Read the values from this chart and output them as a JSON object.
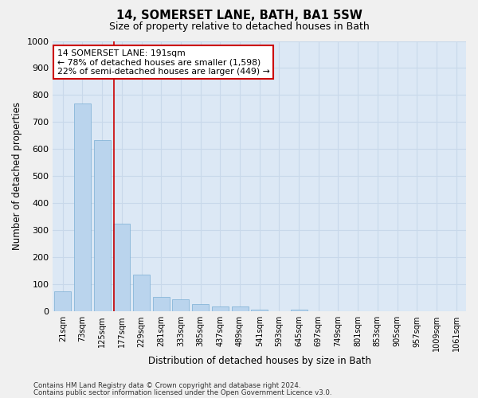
{
  "title": "14, SOMERSET LANE, BATH, BA1 5SW",
  "subtitle": "Size of property relative to detached houses in Bath",
  "xlabel": "Distribution of detached houses by size in Bath",
  "ylabel": "Number of detached properties",
  "categories": [
    "21sqm",
    "73sqm",
    "125sqm",
    "177sqm",
    "229sqm",
    "281sqm",
    "333sqm",
    "385sqm",
    "437sqm",
    "489sqm",
    "541sqm",
    "593sqm",
    "645sqm",
    "697sqm",
    "749sqm",
    "801sqm",
    "853sqm",
    "905sqm",
    "957sqm",
    "1009sqm",
    "1061sqm"
  ],
  "values": [
    75,
    770,
    635,
    325,
    135,
    55,
    45,
    27,
    20,
    18,
    8,
    0,
    8,
    0,
    0,
    0,
    0,
    0,
    0,
    0,
    0
  ],
  "bar_color": "#bad4ed",
  "bar_edge_color": "#7aafd4",
  "grid_color": "#c8d8ea",
  "background_color": "#dce8f5",
  "fig_background_color": "#f0f0f0",
  "annotation_box_text": "14 SOMERSET LANE: 191sqm\n← 78% of detached houses are smaller (1,598)\n22% of semi-detached houses are larger (449) →",
  "annotation_box_color": "#ffffff",
  "annotation_box_edge_color": "#cc0000",
  "vline_color": "#cc0000",
  "vline_x": 2.62,
  "ylim": [
    0,
    1000
  ],
  "yticks": [
    0,
    100,
    200,
    300,
    400,
    500,
    600,
    700,
    800,
    900,
    1000
  ],
  "footer_line1": "Contains HM Land Registry data © Crown copyright and database right 2024.",
  "footer_line2": "Contains public sector information licensed under the Open Government Licence v3.0."
}
